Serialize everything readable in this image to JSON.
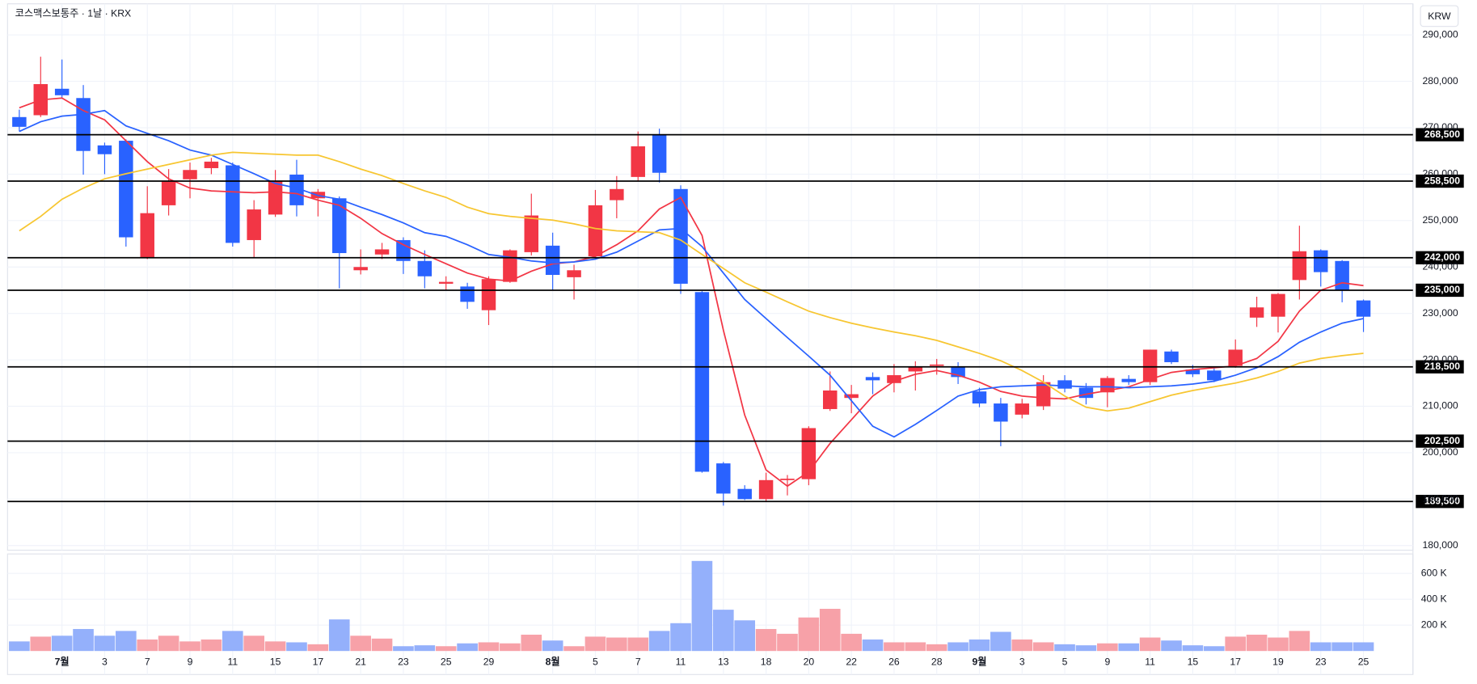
{
  "chart_data": {
    "type": "candlestick",
    "title": "코스맥스보통주 · 1날 · KRX",
    "currency": "KRW",
    "categories": [
      null,
      null,
      "7월",
      null,
      "3",
      null,
      "7",
      null,
      "9",
      null,
      "11",
      null,
      "15",
      null,
      "17",
      null,
      "21",
      null,
      "23",
      null,
      "25",
      null,
      "29",
      null,
      null,
      "8월",
      null,
      "5",
      null,
      "7",
      null,
      "11",
      null,
      "13",
      null,
      "18",
      null,
      "20",
      null,
      "22",
      null,
      "26",
      null,
      "28",
      null,
      "9월",
      null,
      "3",
      null,
      "5",
      null,
      "9",
      null,
      "11",
      null,
      "15",
      null,
      "17",
      null,
      "19",
      null,
      "23",
      null,
      "25"
    ],
    "open": [
      272300,
      272700,
      278400,
      276400,
      266200,
      267200,
      241900,
      253300,
      258900,
      261300,
      261900,
      245800,
      251300,
      259900,
      254800,
      254800,
      239300,
      242700,
      245800,
      241300,
      236400,
      235800,
      230700,
      236800,
      243200,
      244600,
      237800,
      242300,
      254400,
      259400,
      268600,
      256800,
      234600,
      197700,
      192200,
      190000,
      194100,
      194300,
      209400,
      211800,
      216300,
      215000,
      217500,
      218700,
      218500,
      213200,
      210600,
      208200,
      210000,
      215600,
      214000,
      213000,
      215900,
      215200,
      221800,
      217900,
      217700,
      218700,
      229100,
      229300,
      237200,
      243600,
      241300,
      232800
    ],
    "high": [
      273900,
      285300,
      284700,
      279200,
      266800,
      267500,
      257400,
      261100,
      262500,
      263500,
      262500,
      254400,
      260900,
      263100,
      256800,
      255200,
      243800,
      245200,
      246400,
      243600,
      238000,
      236600,
      238000,
      243800,
      255800,
      247400,
      240500,
      256600,
      259600,
      269200,
      269800,
      257600,
      234800,
      198000,
      193000,
      195700,
      195200,
      205700,
      217500,
      214600,
      217300,
      219100,
      219700,
      220200,
      219500,
      214000,
      211800,
      211600,
      216700,
      216700,
      215000,
      216500,
      216700,
      222200,
      222200,
      218900,
      218500,
      224400,
      233600,
      234400,
      248900,
      243800,
      241500,
      233000
    ],
    "low": [
      269200,
      272300,
      276500,
      259900,
      260000,
      244400,
      241700,
      251100,
      254800,
      260000,
      244400,
      241900,
      250800,
      250900,
      250900,
      235400,
      238400,
      241700,
      238500,
      235400,
      235000,
      231000,
      227500,
      236600,
      242500,
      235000,
      233000,
      241700,
      250500,
      258500,
      258200,
      234200,
      195700,
      188600,
      189800,
      189500,
      190800,
      193000,
      209000,
      208500,
      212600,
      213000,
      213400,
      216800,
      214800,
      209800,
      201400,
      207400,
      209200,
      213000,
      210400,
      209800,
      214600,
      214600,
      219100,
      216300,
      215200,
      218300,
      227100,
      225900,
      233000,
      235800,
      232400,
      226000
    ],
    "close": [
      270200,
      279400,
      277000,
      265000,
      264300,
      246400,
      251600,
      258400,
      260900,
      262700,
      245200,
      252400,
      258600,
      253300,
      256200,
      243000,
      240000,
      243800,
      241300,
      238000,
      236800,
      232500,
      237400,
      243600,
      251100,
      238300,
      239300,
      253300,
      256800,
      266000,
      260300,
      236400,
      195900,
      191200,
      190000,
      194100,
      194400,
      205300,
      213400,
      212600,
      215600,
      216700,
      218500,
      219000,
      216300,
      210600,
      206700,
      210600,
      215200,
      213800,
      211800,
      216100,
      215200,
      222200,
      219500,
      216900,
      215600,
      222200,
      231300,
      234200,
      243400,
      238900,
      235000,
      229300
    ],
    "up_color": "#f23645",
    "down_color": "#2962ff",
    "ylim": [
      179000,
      296700
    ],
    "yticks": [
      {
        "value": 180000,
        "label": "180,000"
      },
      {
        "value": 190000,
        "label": "190,000"
      },
      {
        "value": 200000,
        "label": "200,000"
      },
      {
        "value": 210000,
        "label": "210,000"
      },
      {
        "value": 220000,
        "label": "220,000"
      },
      {
        "value": 230000,
        "label": "230,000"
      },
      {
        "value": 240000,
        "label": "240,000"
      },
      {
        "value": 250000,
        "label": "250,000"
      },
      {
        "value": 260000,
        "label": "260,000"
      },
      {
        "value": 270000,
        "label": "270,000"
      },
      {
        "value": 280000,
        "label": "280,000"
      },
      {
        "value": 290000,
        "label": "290,000"
      }
    ],
    "grid": true,
    "moving_averages": [
      {
        "color": "#f23645",
        "values": [
          274300,
          276000,
          276400,
          273700,
          271700,
          267200,
          262700,
          259000,
          257000,
          256400,
          256200,
          256000,
          256200,
          255800,
          254400,
          253300,
          250500,
          247200,
          244800,
          242700,
          240700,
          238700,
          237400,
          237000,
          239100,
          240700,
          241100,
          242300,
          244800,
          247800,
          252500,
          255000,
          246800,
          226400,
          208100,
          196300,
          192800,
          195900,
          202000,
          207100,
          212200,
          215400,
          216900,
          217700,
          216700,
          215200,
          213200,
          212200,
          211800,
          211600,
          212600,
          213400,
          214200,
          215800,
          217300,
          217900,
          218300,
          218700,
          220300,
          224000,
          230500,
          235000,
          236600,
          236000
        ]
      },
      {
        "color": "#2962ff",
        "values": [
          269200,
          271300,
          272500,
          272900,
          273700,
          270400,
          268800,
          267200,
          265200,
          264100,
          262100,
          260100,
          258000,
          257000,
          255400,
          254600,
          252900,
          251300,
          249500,
          247400,
          246600,
          244800,
          242700,
          242100,
          241300,
          240900,
          241100,
          241700,
          243200,
          245600,
          248000,
          248300,
          244400,
          238700,
          233000,
          228900,
          224800,
          220800,
          216700,
          211200,
          205700,
          203400,
          206100,
          209100,
          212200,
          213600,
          214200,
          214400,
          214600,
          214400,
          214200,
          214200,
          214000,
          214200,
          214400,
          214800,
          215400,
          216700,
          218300,
          220700,
          223800,
          226000,
          227900,
          228900
        ]
      },
      {
        "color": "#f7c631",
        "values": [
          247800,
          250900,
          254600,
          257000,
          259000,
          260100,
          261100,
          262100,
          263100,
          264100,
          264700,
          264500,
          264300,
          264100,
          264100,
          262700,
          261100,
          259700,
          258000,
          256400,
          255000,
          252900,
          251500,
          250900,
          250500,
          250100,
          249300,
          248300,
          247800,
          247600,
          247400,
          245800,
          242700,
          239700,
          236600,
          234600,
          232500,
          230500,
          229100,
          227900,
          226900,
          226000,
          225200,
          224200,
          222800,
          221400,
          219800,
          217700,
          215200,
          212200,
          209800,
          209000,
          209600,
          211000,
          212400,
          213400,
          214200,
          215000,
          216100,
          217500,
          219300,
          220300,
          220900,
          221400
        ]
      }
    ],
    "levels": [
      {
        "value": 268500,
        "label": "268,500"
      },
      {
        "value": 258500,
        "label": "258,500"
      },
      {
        "value": 242000,
        "label": "242,000"
      },
      {
        "value": 235000,
        "label": "235,000"
      },
      {
        "value": 218500,
        "label": "218,500"
      },
      {
        "value": 202500,
        "label": "202,500"
      },
      {
        "value": 189500,
        "label": "189,500"
      }
    ],
    "volume": {
      "values": [
        74000,
        111000,
        118000,
        170000,
        118000,
        155000,
        89000,
        118000,
        74000,
        89000,
        155000,
        118000,
        74000,
        67000,
        52000,
        244000,
        118000,
        96000,
        37000,
        44000,
        37000,
        59000,
        67000,
        59000,
        126000,
        81000,
        37000,
        111000,
        104000,
        104000,
        155000,
        215000,
        696000,
        319000,
        237000,
        170000,
        133000,
        259000,
        326000,
        133000,
        89000,
        67000,
        67000,
        52000,
        67000,
        89000,
        148000,
        89000,
        67000,
        52000,
        44000,
        59000,
        59000,
        104000,
        81000,
        44000,
        37000,
        111000,
        126000,
        104000,
        155000,
        67000,
        67000,
        67000
      ],
      "up_color": "#f7a1a8",
      "down_color": "#94b0fb",
      "ylim": [
        0,
        750000
      ],
      "yticks": [
        {
          "value": 200000,
          "label": "200 K"
        },
        {
          "value": 400000,
          "label": "400 K"
        },
        {
          "value": 600000,
          "label": "600 K"
        }
      ]
    }
  }
}
